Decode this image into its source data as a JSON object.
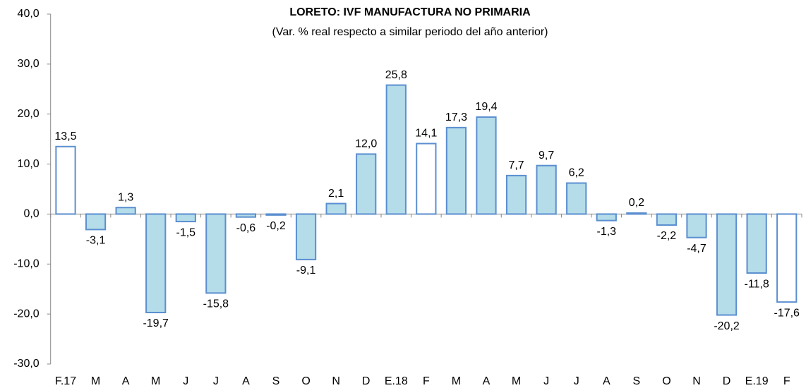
{
  "chart_data": {
    "type": "bar",
    "title": "LORETO: IVF MANUFACTURA NO PRIMARIA",
    "subtitle": "(Var. % real respecto a similar periodo del año anterior)",
    "categories": [
      "F.17",
      "M",
      "A",
      "M",
      "J",
      "J",
      "A",
      "S",
      "O",
      "N",
      "D",
      "E.18",
      "F",
      "M",
      "A",
      "M",
      "J",
      "J",
      "A",
      "S",
      "O",
      "N",
      "D",
      "E.19",
      "F"
    ],
    "values": [
      13.5,
      -3.1,
      1.3,
      -19.7,
      -1.5,
      -15.8,
      -0.6,
      -0.2,
      -9.1,
      2.1,
      12.0,
      25.8,
      14.1,
      17.3,
      19.4,
      7.7,
      9.7,
      6.2,
      -1.3,
      0.2,
      -2.2,
      -4.7,
      -20.2,
      -11.8,
      -17.6
    ],
    "value_labels": [
      "13,5",
      "-3,1",
      "1,3",
      "-19,7",
      "-1,5",
      "-15,8",
      "-0,6",
      "-0,2",
      "-9,1",
      "2,1",
      "12,0",
      "25,8",
      "14,1",
      "17,3",
      "19,4",
      "7,7",
      "9,7",
      "6,2",
      "-1,3",
      "0,2",
      "-2,2",
      "-4,7",
      "-20,2",
      "-11,8",
      "-17,6"
    ],
    "colors": [
      "#ffffff",
      "#b4dce9",
      "#b4dce9",
      "#b4dce9",
      "#b4dce9",
      "#b4dce9",
      "#b4dce9",
      "#b4dce9",
      "#b4dce9",
      "#b4dce9",
      "#b4dce9",
      "#b4dce9",
      "#ffffff",
      "#b4dce9",
      "#b4dce9",
      "#b4dce9",
      "#b4dce9",
      "#b4dce9",
      "#b4dce9",
      "#b4dce9",
      "#b4dce9",
      "#b4dce9",
      "#b4dce9",
      "#b4dce9",
      "#ffffff"
    ],
    "edge_color": "#5b8fd0",
    "ylim": [
      -30,
      40
    ],
    "yticks": [
      {
        "value": -30,
        "label": "-30,0"
      },
      {
        "value": -20,
        "label": "-20,0"
      },
      {
        "value": -10,
        "label": "-10,0"
      },
      {
        "value": 0,
        "label": "0,0"
      },
      {
        "value": 10,
        "label": "10,0"
      },
      {
        "value": 20,
        "label": "20,0"
      },
      {
        "value": 30,
        "label": "30,0"
      },
      {
        "value": 40,
        "label": "40,0"
      }
    ],
    "grid": false
  }
}
